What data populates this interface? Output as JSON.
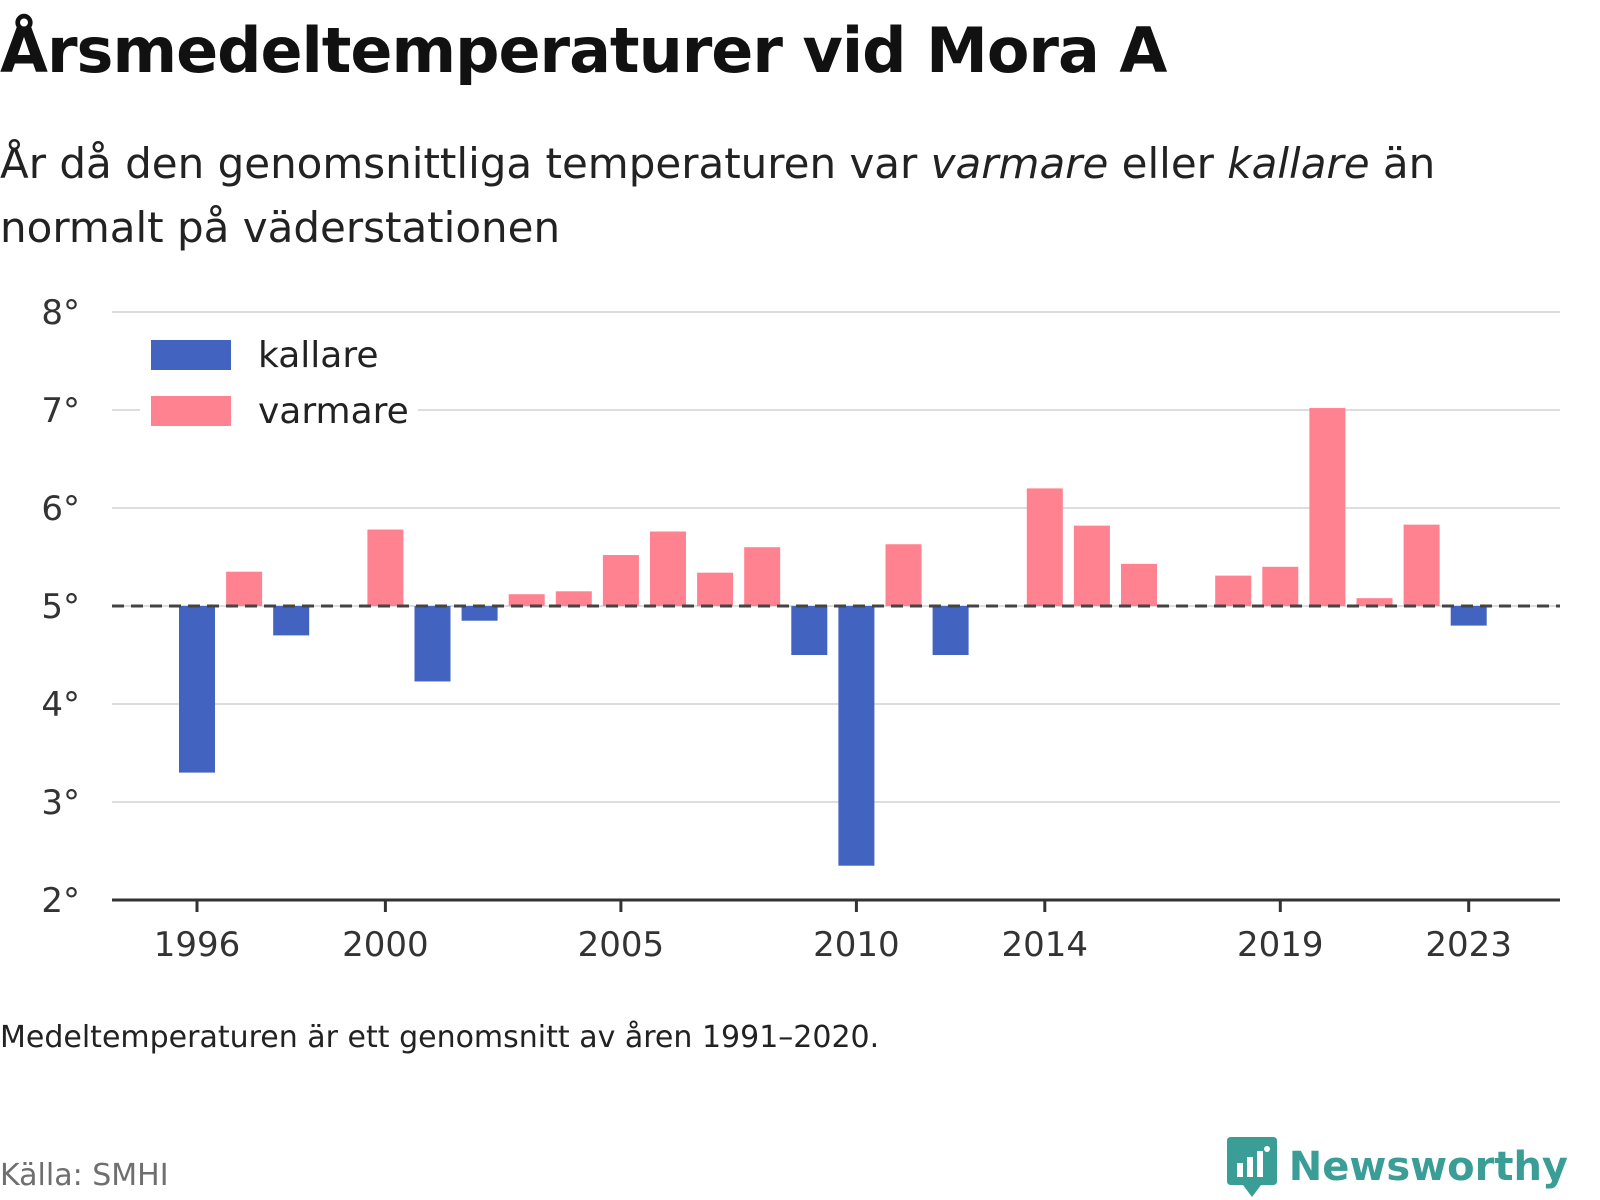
{
  "title": "Årsmedeltemperaturer vid Mora A",
  "subtitle": {
    "part1": "År då den genomsnittliga temperaturen var ",
    "warm": "varmare",
    "part2": " eller ",
    "cold": "kallare",
    "part3": " än normalt på väderstationen"
  },
  "footnote": "Medeltemperaturen är ett genomsnitt av åren 1991–2020.",
  "source": "Källa: SMHI",
  "brand": "Newsworthy",
  "colors": {
    "cold": "#4263bf",
    "warm": "#ff8290",
    "brand": "#3a9e96"
  },
  "chart_data": {
    "type": "bar",
    "baseline": 5.0,
    "baseline_style": "dashed",
    "ylim": [
      2,
      8
    ],
    "yticks": [
      "2°",
      "3°",
      "4°",
      "5°",
      "6°",
      "7°",
      "8°"
    ],
    "xticks": [
      1996,
      2000,
      2005,
      2010,
      2014,
      2019,
      2023
    ],
    "grid": true,
    "legend_position": "top-left",
    "series": [
      {
        "name": "kallare",
        "color": "#4263bf"
      },
      {
        "name": "varmare",
        "color": "#ff8290"
      }
    ],
    "years": [
      1996,
      1997,
      1998,
      1999,
      2000,
      2001,
      2002,
      2003,
      2004,
      2005,
      2006,
      2007,
      2008,
      2009,
      2010,
      2011,
      2012,
      2013,
      2014,
      2015,
      2016,
      2017,
      2018,
      2019,
      2020,
      2021,
      2022,
      2023
    ],
    "values": [
      3.3,
      5.35,
      4.7,
      5.0,
      5.78,
      4.23,
      4.85,
      5.12,
      5.15,
      5.52,
      5.76,
      5.34,
      5.6,
      4.5,
      2.35,
      5.63,
      4.5,
      5.0,
      6.2,
      5.82,
      5.43,
      5.0,
      5.31,
      5.4,
      7.02,
      5.08,
      5.83,
      4.8
    ]
  }
}
